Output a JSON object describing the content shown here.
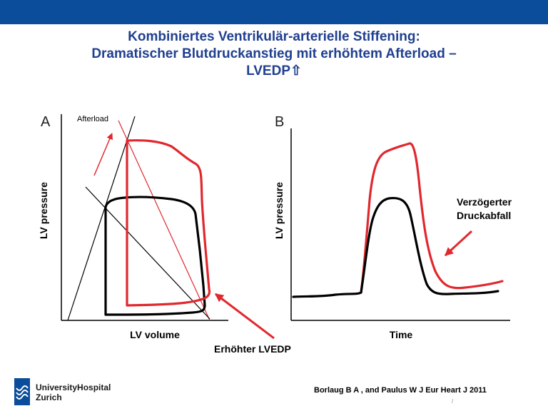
{
  "header": {
    "title_line1": "Kombiniertes Ventrikulär-arterielle Stiffening:",
    "title_line2": "Dramatischer Blutdruckanstieg mit erhöhtem Afterload –",
    "title_line3": "LVEDP⇧"
  },
  "panel_a": {
    "letter": "A",
    "afterload_label": "Afterload",
    "y_axis_label": "LV pressure",
    "x_axis_label": "LV volume"
  },
  "panel_b": {
    "letter": "B",
    "y_axis_label": "LV pressure",
    "x_axis_label": "Time",
    "annotation_line1": "Verzögerter",
    "annotation_line2": "Druckabfall"
  },
  "annotation_lvedp": "Erhöhter LVEDP",
  "footer": {
    "logo_line1": "UniversityHospital",
    "logo_line2": "Zurich",
    "citation": "Borlaug B A , and Paulus W J Eur Heart J 2011",
    "page_number": "/"
  },
  "colors": {
    "top_bar": "#0b4d9a",
    "title": "#1f3f8f",
    "normal_curve": "#000000",
    "stiff_curve": "#e0282e"
  }
}
